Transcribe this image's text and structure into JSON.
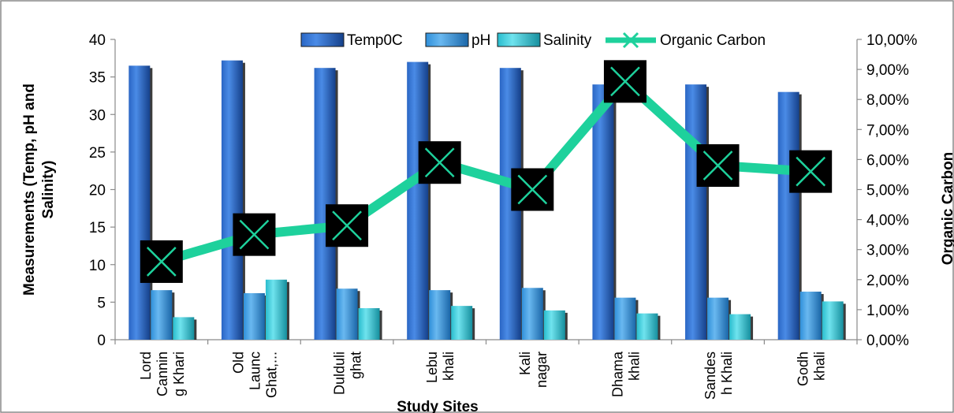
{
  "chart_data": {
    "type": "bar",
    "categories": [
      [
        "Lord",
        "Cannin",
        "g Khari"
      ],
      [
        "Old",
        "Launc",
        "Ghat,..."
      ],
      [
        "Dulduli",
        "ghat"
      ],
      [
        "Lebu",
        "khali"
      ],
      [
        "Kali",
        "nagar"
      ],
      [
        "Dhama",
        "khali"
      ],
      [
        "Sandes",
        "h Khali"
      ],
      [
        "Godh",
        "khali"
      ]
    ],
    "series": [
      {
        "name": "Temp0C",
        "type": "bar",
        "axis": "left",
        "color": "#1f5fbf",
        "values": [
          36.5,
          37.2,
          36.2,
          37.0,
          36.2,
          34.0,
          34.0,
          33.0
        ]
      },
      {
        "name": "pH",
        "type": "bar",
        "axis": "left",
        "color": "#2e8fd6",
        "values": [
          6.6,
          6.2,
          6.8,
          6.6,
          6.9,
          5.6,
          5.6,
          6.4
        ]
      },
      {
        "name": "Salinity",
        "type": "bar",
        "axis": "left",
        "color": "#2bc3d3",
        "values": [
          3.0,
          8.0,
          4.2,
          4.5,
          3.9,
          3.5,
          3.4,
          5.1
        ]
      },
      {
        "name": "Organic Carbon",
        "type": "line",
        "axis": "right",
        "color": "#1ed19c",
        "values": [
          0.026,
          0.035,
          0.038,
          0.059,
          0.05,
          0.086,
          0.058,
          0.056
        ]
      }
    ],
    "ylabel": "Measurements (Temp, pH and Salinity)",
    "ylabel_lines": [
      "Measurements (Temp, pH and",
      "Salinity)"
    ],
    "y2label": "Organic Carbon",
    "xlabel": "Study Sites",
    "ylim": [
      0,
      40
    ],
    "y2lim": [
      0,
      0.1
    ],
    "yticks": [
      "0",
      "5",
      "10",
      "15",
      "20",
      "25",
      "30",
      "35",
      "40"
    ],
    "y2ticks": [
      "0,00%",
      "1,00%",
      "2,00%",
      "3,00%",
      "4,00%",
      "5,00%",
      "6,00%",
      "7,00%",
      "8,00%",
      "9,00%",
      "10,00%"
    ],
    "grid": false,
    "legend_position": "top"
  }
}
